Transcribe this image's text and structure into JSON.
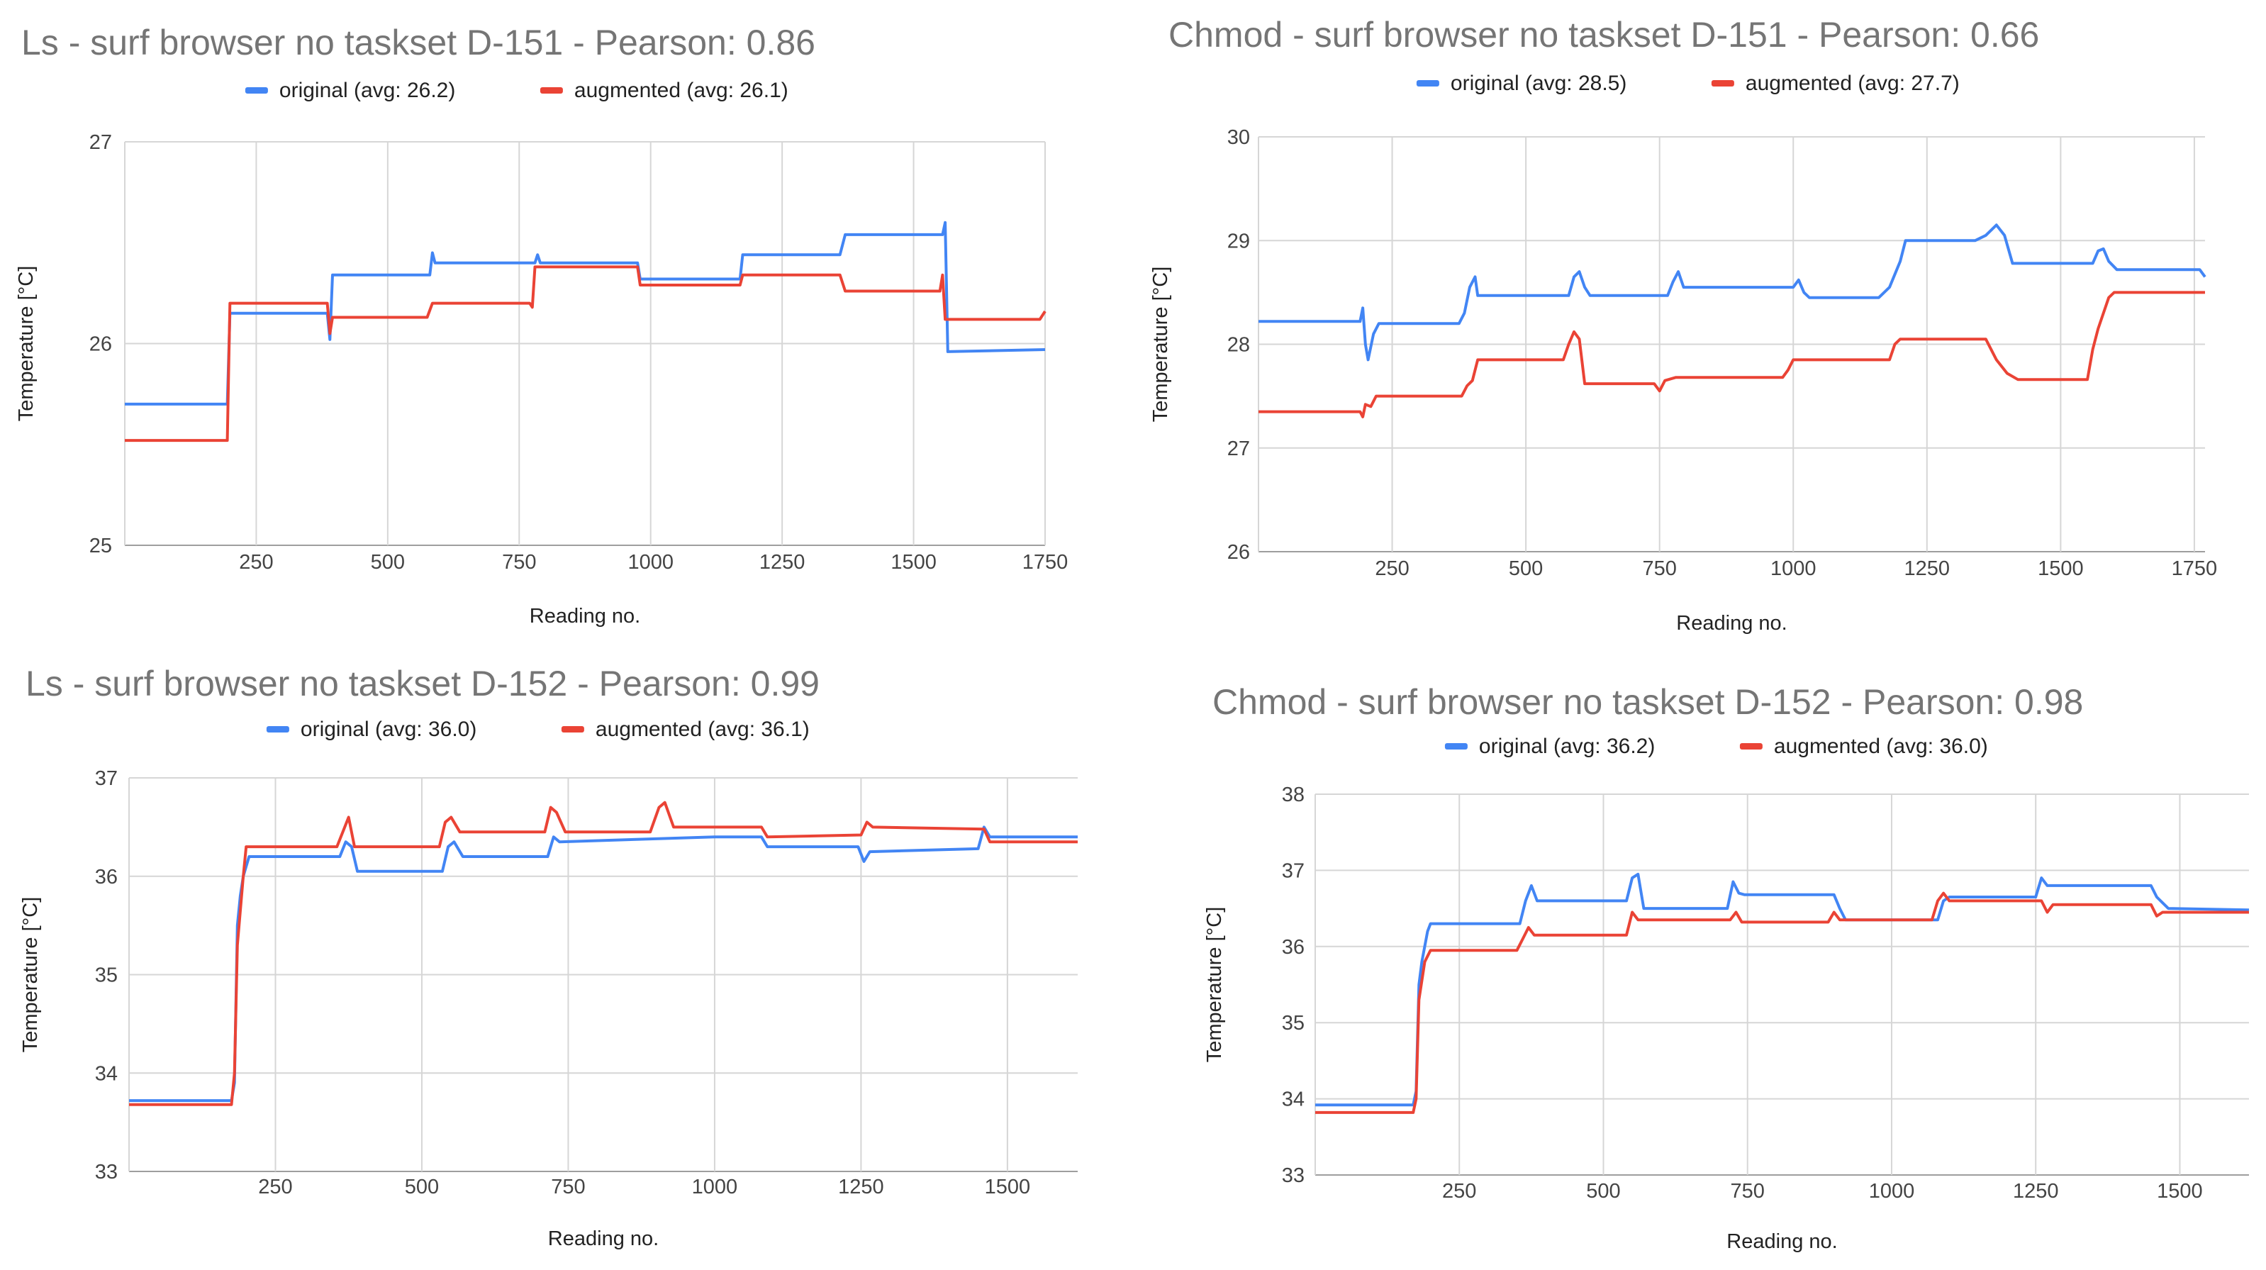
{
  "chart_data": [
    {
      "type": "line",
      "title": "Ls - surf browser no taskset D-151 - Pearson: 0.86",
      "xlabel": "Reading no.",
      "ylabel": "Temperature [°C]",
      "xlim": [
        0,
        1750
      ],
      "ylim": [
        25,
        27
      ],
      "xticks": [
        250,
        500,
        750,
        1000,
        1250,
        1500,
        1750
      ],
      "yticks": [
        25,
        26,
        27
      ],
      "grid": true,
      "legend_position": "top",
      "series": [
        {
          "name": "original (avg: 26.2)",
          "color": "#4285f4",
          "points": [
            [
              0,
              25.7
            ],
            [
              195,
              25.7
            ],
            [
              200,
              26.15
            ],
            [
              385,
              26.15
            ],
            [
              390,
              26.02
            ],
            [
              395,
              26.34
            ],
            [
              580,
              26.34
            ],
            [
              585,
              26.45
            ],
            [
              590,
              26.4
            ],
            [
              780,
              26.4
            ],
            [
              785,
              26.44
            ],
            [
              790,
              26.4
            ],
            [
              975,
              26.4
            ],
            [
              980,
              26.32
            ],
            [
              1170,
              26.32
            ],
            [
              1175,
              26.44
            ],
            [
              1360,
              26.44
            ],
            [
              1370,
              26.54
            ],
            [
              1555,
              26.54
            ],
            [
              1560,
              26.6
            ],
            [
              1565,
              25.96
            ],
            [
              1750,
              25.97
            ]
          ]
        },
        {
          "name": "augmented (avg: 26.1)",
          "color": "#ea4335",
          "points": [
            [
              0,
              25.52
            ],
            [
              195,
              25.52
            ],
            [
              200,
              26.2
            ],
            [
              385,
              26.2
            ],
            [
              390,
              26.05
            ],
            [
              395,
              26.13
            ],
            [
              575,
              26.13
            ],
            [
              585,
              26.2
            ],
            [
              770,
              26.2
            ],
            [
              775,
              26.18
            ],
            [
              780,
              26.38
            ],
            [
              975,
              26.38
            ],
            [
              980,
              26.29
            ],
            [
              1170,
              26.29
            ],
            [
              1175,
              26.34
            ],
            [
              1360,
              26.34
            ],
            [
              1370,
              26.26
            ],
            [
              1550,
              26.26
            ],
            [
              1555,
              26.34
            ],
            [
              1560,
              26.12
            ],
            [
              1740,
              26.12
            ],
            [
              1750,
              26.16
            ]
          ]
        }
      ]
    },
    {
      "type": "line",
      "title": "Chmod - surf browser no taskset D-151 - Pearson: 0.66",
      "xlabel": "Reading no.",
      "ylabel": "Temperature [°C]",
      "xlim": [
        0,
        1770
      ],
      "ylim": [
        26,
        30
      ],
      "xticks": [
        250,
        500,
        750,
        1000,
        1250,
        1500,
        1750
      ],
      "yticks": [
        26,
        27,
        28,
        29,
        30
      ],
      "grid": true,
      "legend_position": "top",
      "series": [
        {
          "name": "original (avg: 28.5)",
          "color": "#4285f4",
          "points": [
            [
              0,
              28.22
            ],
            [
              190,
              28.22
            ],
            [
              195,
              28.35
            ],
            [
              200,
              28.0
            ],
            [
              205,
              27.85
            ],
            [
              215,
              28.1
            ],
            [
              225,
              28.2
            ],
            [
              375,
              28.2
            ],
            [
              385,
              28.3
            ],
            [
              395,
              28.55
            ],
            [
              405,
              28.65
            ],
            [
              410,
              28.47
            ],
            [
              580,
              28.47
            ],
            [
              590,
              28.65
            ],
            [
              600,
              28.7
            ],
            [
              610,
              28.55
            ],
            [
              620,
              28.47
            ],
            [
              765,
              28.47
            ],
            [
              775,
              28.6
            ],
            [
              785,
              28.7
            ],
            [
              795,
              28.55
            ],
            [
              1000,
              28.55
            ],
            [
              1010,
              28.62
            ],
            [
              1020,
              28.5
            ],
            [
              1030,
              28.45
            ],
            [
              1160,
              28.45
            ],
            [
              1180,
              28.55
            ],
            [
              1200,
              28.8
            ],
            [
              1210,
              29.0
            ],
            [
              1340,
              29.0
            ],
            [
              1360,
              29.05
            ],
            [
              1380,
              29.15
            ],
            [
              1395,
              29.05
            ],
            [
              1410,
              28.78
            ],
            [
              1560,
              28.78
            ],
            [
              1570,
              28.9
            ],
            [
              1580,
              28.92
            ],
            [
              1590,
              28.8
            ],
            [
              1605,
              28.72
            ],
            [
              1760,
              28.72
            ],
            [
              1770,
              28.65
            ]
          ]
        },
        {
          "name": "augmented (avg: 27.7)",
          "color": "#ea4335",
          "points": [
            [
              0,
              27.35
            ],
            [
              190,
              27.35
            ],
            [
              195,
              27.3
            ],
            [
              200,
              27.42
            ],
            [
              210,
              27.4
            ],
            [
              220,
              27.5
            ],
            [
              380,
              27.5
            ],
            [
              390,
              27.6
            ],
            [
              400,
              27.65
            ],
            [
              410,
              27.85
            ],
            [
              570,
              27.85
            ],
            [
              580,
              28.0
            ],
            [
              590,
              28.12
            ],
            [
              600,
              28.05
            ],
            [
              610,
              27.62
            ],
            [
              740,
              27.62
            ],
            [
              750,
              27.55
            ],
            [
              760,
              27.65
            ],
            [
              780,
              27.68
            ],
            [
              980,
              27.68
            ],
            [
              990,
              27.75
            ],
            [
              1000,
              27.85
            ],
            [
              1180,
              27.85
            ],
            [
              1190,
              28.0
            ],
            [
              1200,
              28.05
            ],
            [
              1360,
              28.05
            ],
            [
              1380,
              27.85
            ],
            [
              1400,
              27.72
            ],
            [
              1420,
              27.66
            ],
            [
              1550,
              27.66
            ],
            [
              1560,
              27.95
            ],
            [
              1570,
              28.15
            ],
            [
              1580,
              28.3
            ],
            [
              1590,
              28.45
            ],
            [
              1600,
              28.5
            ],
            [
              1770,
              28.5
            ]
          ]
        }
      ]
    },
    {
      "type": "line",
      "title": "Ls - surf browser no taskset D-152 - Pearson: 0.99",
      "xlabel": "Reading no.",
      "ylabel": "Temperature [°C]",
      "xlim": [
        0,
        1620
      ],
      "ylim": [
        33,
        37
      ],
      "xticks": [
        250,
        500,
        750,
        1000,
        1250,
        1500
      ],
      "yticks": [
        33,
        34,
        35,
        36,
        37
      ],
      "grid": true,
      "legend_position": "top",
      "series": [
        {
          "name": "original (avg: 36.0)",
          "color": "#4285f4",
          "points": [
            [
              0,
              33.72
            ],
            [
              175,
              33.72
            ],
            [
              180,
              33.9
            ],
            [
              185,
              35.5
            ],
            [
              190,
              35.8
            ],
            [
              195,
              36.0
            ],
            [
              205,
              36.2
            ],
            [
              360,
              36.2
            ],
            [
              370,
              36.35
            ],
            [
              380,
              36.3
            ],
            [
              390,
              36.05
            ],
            [
              535,
              36.05
            ],
            [
              545,
              36.3
            ],
            [
              555,
              36.35
            ],
            [
              570,
              36.2
            ],
            [
              715,
              36.2
            ],
            [
              725,
              36.4
            ],
            [
              735,
              36.35
            ],
            [
              1000,
              36.4
            ],
            [
              1080,
              36.4
            ],
            [
              1090,
              36.3
            ],
            [
              1245,
              36.3
            ],
            [
              1255,
              36.15
            ],
            [
              1265,
              36.25
            ],
            [
              1450,
              36.28
            ],
            [
              1460,
              36.5
            ],
            [
              1470,
              36.4
            ],
            [
              1620,
              36.4
            ]
          ]
        },
        {
          "name": "augmented (avg: 36.1)",
          "color": "#ea4335",
          "points": [
            [
              0,
              33.68
            ],
            [
              175,
              33.68
            ],
            [
              180,
              34.0
            ],
            [
              185,
              35.3
            ],
            [
              195,
              36.0
            ],
            [
              200,
              36.3
            ],
            [
              355,
              36.3
            ],
            [
              365,
              36.45
            ],
            [
              375,
              36.6
            ],
            [
              385,
              36.3
            ],
            [
              530,
              36.3
            ],
            [
              540,
              36.55
            ],
            [
              550,
              36.6
            ],
            [
              565,
              36.45
            ],
            [
              710,
              36.45
            ],
            [
              720,
              36.7
            ],
            [
              730,
              36.65
            ],
            [
              745,
              36.45
            ],
            [
              890,
              36.45
            ],
            [
              905,
              36.7
            ],
            [
              915,
              36.75
            ],
            [
              930,
              36.5
            ],
            [
              1080,
              36.5
            ],
            [
              1090,
              36.4
            ],
            [
              1250,
              36.42
            ],
            [
              1260,
              36.55
            ],
            [
              1270,
              36.5
            ],
            [
              1460,
              36.48
            ],
            [
              1470,
              36.35
            ],
            [
              1620,
              36.35
            ]
          ]
        }
      ]
    },
    {
      "type": "line",
      "title": "Chmod - surf browser no taskset D-152 - Pearson: 0.98",
      "xlabel": "Reading no.",
      "ylabel": "Temperature [°C]",
      "xlim": [
        0,
        1620
      ],
      "ylim": [
        33,
        38
      ],
      "xticks": [
        250,
        500,
        750,
        1000,
        1250,
        1500
      ],
      "yticks": [
        33,
        34,
        35,
        36,
        37,
        38
      ],
      "grid": true,
      "legend_position": "top",
      "series": [
        {
          "name": "original (avg: 36.2)",
          "color": "#4285f4",
          "points": [
            [
              0,
              33.92
            ],
            [
              170,
              33.92
            ],
            [
              175,
              34.1
            ],
            [
              180,
              35.5
            ],
            [
              185,
              35.8
            ],
            [
              195,
              36.2
            ],
            [
              200,
              36.3
            ],
            [
              355,
              36.3
            ],
            [
              365,
              36.6
            ],
            [
              375,
              36.8
            ],
            [
              385,
              36.6
            ],
            [
              540,
              36.6
            ],
            [
              550,
              36.9
            ],
            [
              560,
              36.95
            ],
            [
              570,
              36.5
            ],
            [
              715,
              36.5
            ],
            [
              725,
              36.85
            ],
            [
              735,
              36.7
            ],
            [
              745,
              36.68
            ],
            [
              900,
              36.68
            ],
            [
              910,
              36.5
            ],
            [
              920,
              36.35
            ],
            [
              1080,
              36.35
            ],
            [
              1090,
              36.6
            ],
            [
              1100,
              36.65
            ],
            [
              1250,
              36.65
            ],
            [
              1260,
              36.9
            ],
            [
              1270,
              36.8
            ],
            [
              1450,
              36.8
            ],
            [
              1460,
              36.65
            ],
            [
              1480,
              36.5
            ],
            [
              1620,
              36.48
            ]
          ]
        },
        {
          "name": "augmented (avg: 36.0)",
          "color": "#ea4335",
          "points": [
            [
              0,
              33.82
            ],
            [
              170,
              33.82
            ],
            [
              175,
              34.0
            ],
            [
              180,
              35.3
            ],
            [
              190,
              35.8
            ],
            [
              200,
              35.95
            ],
            [
              350,
              35.95
            ],
            [
              360,
              36.1
            ],
            [
              370,
              36.25
            ],
            [
              380,
              36.15
            ],
            [
              540,
              36.15
            ],
            [
              550,
              36.45
            ],
            [
              560,
              36.35
            ],
            [
              720,
              36.35
            ],
            [
              730,
              36.45
            ],
            [
              740,
              36.32
            ],
            [
              890,
              36.32
            ],
            [
              900,
              36.45
            ],
            [
              910,
              36.35
            ],
            [
              1070,
              36.35
            ],
            [
              1080,
              36.6
            ],
            [
              1090,
              36.7
            ],
            [
              1100,
              36.6
            ],
            [
              1260,
              36.6
            ],
            [
              1270,
              36.45
            ],
            [
              1280,
              36.55
            ],
            [
              1450,
              36.55
            ],
            [
              1460,
              36.4
            ],
            [
              1470,
              36.45
            ],
            [
              1620,
              36.45
            ]
          ]
        }
      ]
    }
  ]
}
